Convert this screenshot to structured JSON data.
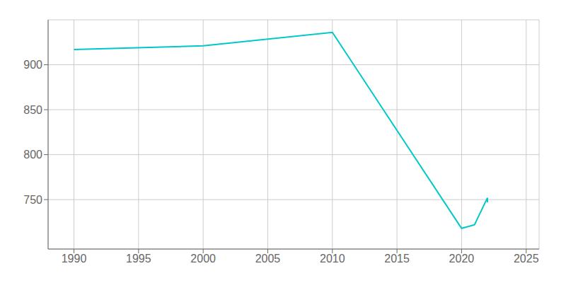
{
  "chart_data": {
    "type": "line",
    "x": [
      1990,
      2000,
      2010,
      2020,
      2021,
      2022,
      2022
    ],
    "values": [
      917,
      921,
      936,
      718,
      722,
      752,
      747
    ],
    "color": "#00C8C8",
    "xlim": [
      1988,
      2026
    ],
    "xticks": [
      1990,
      1995,
      2000,
      2005,
      2010,
      2015,
      2020,
      2025
    ],
    "ylim": [
      695,
      950
    ],
    "yticks": [
      750,
      800,
      850,
      900
    ],
    "grid": true
  }
}
